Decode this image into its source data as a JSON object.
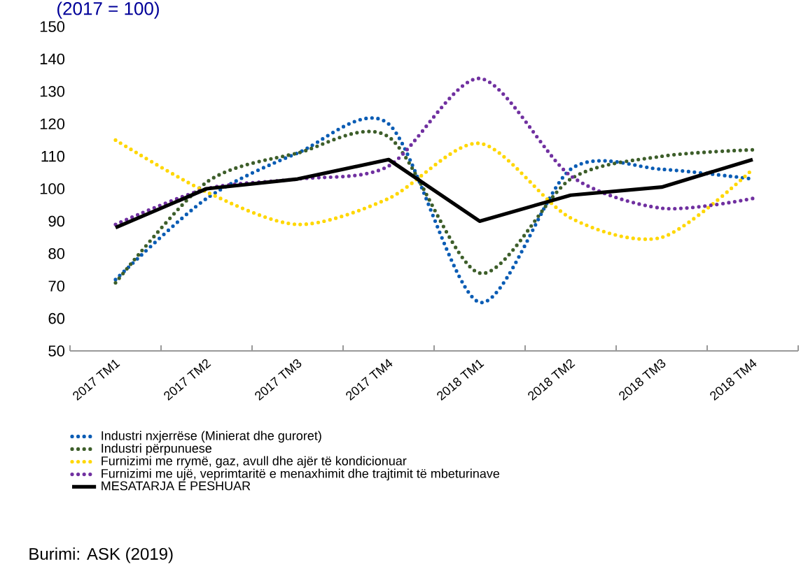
{
  "chart_data": {
    "type": "line",
    "subtitle": "(2017 = 100)",
    "categories": [
      "2017 TM1",
      "2017 TM2",
      "2017 TM3",
      "2017 TM4",
      "2018 TM1",
      "2018 TM2",
      "2018 TM3",
      "2018 TM4"
    ],
    "series": [
      {
        "name": "Industri nxjerrëse (Minierat dhe guroret)",
        "color": "#0a5cb4",
        "line_style": "dotted",
        "values": [
          72,
          97,
          111,
          120,
          65,
          106,
          106,
          103
        ]
      },
      {
        "name": "Industri përpunuese",
        "color": "#3d5e2a",
        "line_style": "dotted",
        "values": [
          71,
          102,
          111,
          116,
          74,
          103,
          110,
          112
        ]
      },
      {
        "name": "Furnizimi me rrymë, gaz, avull dhe ajër të kondicionuar",
        "color": "#ffd700",
        "line_style": "dotted",
        "values": [
          115,
          99,
          89,
          97,
          114,
          91,
          85,
          106
        ]
      },
      {
        "name": "Furnizimi me ujë, veprimtaritë e menaxhimit dhe trajtimit të mbeturinave",
        "color": "#7030a0",
        "line_style": "dotted",
        "values": [
          89,
          100,
          103,
          107,
          134,
          104,
          94,
          97
        ]
      },
      {
        "name": "MESATARJA E PESHUAR",
        "color": "#000000",
        "line_style": "solid",
        "values": [
          88,
          100,
          103,
          109,
          90,
          98,
          100.5,
          109
        ]
      }
    ],
    "ylim": [
      50,
      150
    ],
    "yticks": [
      50,
      60,
      70,
      80,
      90,
      100,
      110,
      120,
      130,
      140,
      150
    ],
    "legend": "bottom",
    "grid": false,
    "annotations": [
      "Burimi: ASK (2019)"
    ]
  }
}
